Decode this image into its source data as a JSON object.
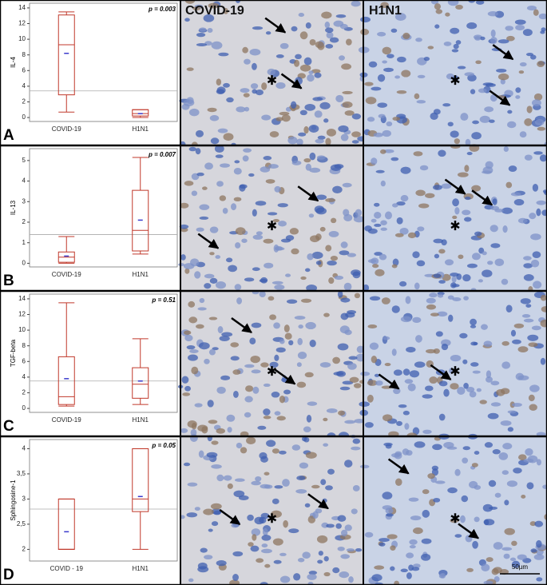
{
  "chart_data": [
    {
      "type": "box",
      "y_label": "IL-4",
      "annotation": "p = 0.003",
      "panel": "A",
      "categories": [
        "COVID-19",
        "H1N1"
      ],
      "boxes": [
        {
          "min": 0.7,
          "q1": 2.9,
          "median": 9.3,
          "q3": 13.1,
          "max": 13.5,
          "mean": 8.2
        },
        {
          "min": 0,
          "q1": 0.2,
          "median": 0.5,
          "q3": 1.0,
          "max": 1.0,
          "mean": 0.5
        }
      ],
      "reference_line": 3.4,
      "color": "#c0392b",
      "mean_color": "#3a3acc",
      "ylim": [
        -0.3,
        14.4
      ],
      "yticks": [
        0,
        2,
        4,
        6,
        8,
        10,
        12,
        14
      ]
    },
    {
      "type": "box",
      "y_label": "IL-13",
      "annotation": "p = 0.007",
      "panel": "B",
      "categories": [
        "COVID-19",
        "H1N1"
      ],
      "boxes": [
        {
          "min": 0,
          "q1": 0.05,
          "median": 0.3,
          "q3": 0.55,
          "max": 1.3,
          "mean": 0.35
        },
        {
          "min": 0.45,
          "q1": 0.6,
          "median": 1.6,
          "q3": 3.55,
          "max": 5.15,
          "mean": 2.1
        }
      ],
      "reference_line": 1.4,
      "color": "#c0392b",
      "mean_color": "#3a3acc",
      "ylim": [
        -0.1,
        5.5
      ],
      "yticks": [
        0,
        1,
        2,
        3,
        4,
        5
      ]
    },
    {
      "type": "box",
      "y_label": "TGF-beta",
      "annotation": "p = 0.51",
      "panel": "C",
      "categories": [
        "COVID-19",
        "H1N1"
      ],
      "boxes": [
        {
          "min": 0.3,
          "q1": 0.5,
          "median": 1.5,
          "q3": 6.6,
          "max": 13.5,
          "mean": 3.8
        },
        {
          "min": 0.5,
          "q1": 1.3,
          "median": 3.1,
          "q3": 5.2,
          "max": 8.9,
          "mean": 3.5
        }
      ],
      "reference_line": 3.5,
      "color": "#c0392b",
      "mean_color": "#3a3acc",
      "ylim": [
        -0.3,
        14.4
      ],
      "yticks": [
        0,
        2,
        4,
        6,
        8,
        10,
        12,
        14
      ]
    },
    {
      "type": "box",
      "y_label": "Sphingosine-1",
      "annotation": "p = 0.05",
      "panel": "D",
      "categories": [
        "COVID - 19",
        "H1N1"
      ],
      "boxes": [
        {
          "min": 2.0,
          "q1": 2.0,
          "median": 2.0,
          "q3": 3.0,
          "max": 3.0,
          "mean": 2.35
        },
        {
          "min": 2.0,
          "q1": 2.75,
          "median": 3.0,
          "q3": 4.0,
          "max": 4.0,
          "mean": 3.05
        }
      ],
      "reference_line": 2.8,
      "color": "#c0392b",
      "mean_color": "#3a3acc",
      "ylim": [
        1.8,
        4.15
      ],
      "yticks": [
        2,
        {
          "value": 2.5,
          "label": "2,5"
        },
        3,
        {
          "value": 3.5,
          "label": "3,5"
        },
        4
      ]
    }
  ],
  "columns": [
    "COVID-19",
    "H1N1"
  ],
  "scale_bar": "50µm"
}
